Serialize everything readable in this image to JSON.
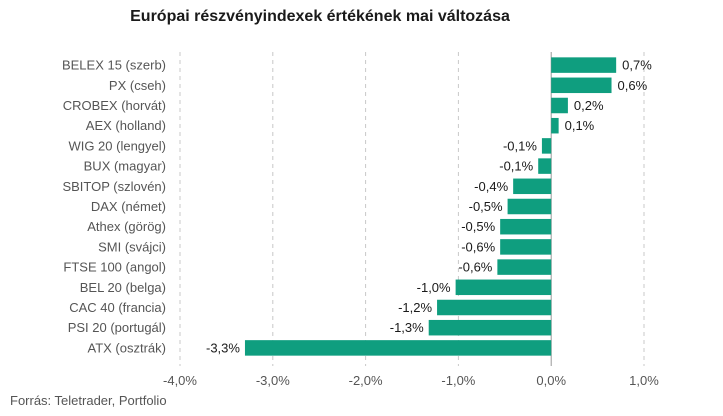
{
  "chart_data": {
    "type": "bar",
    "orientation": "horizontal",
    "title": "Európai részvényindexek értékének mai változása",
    "source": "Forrás: Teletrader, Portfolio",
    "categories": [
      "BELEX 15 (szerb)",
      "PX (cseh)",
      "CROBEX (horvát)",
      "AEX (holland)",
      "WIG 20 (lengyel)",
      "BUX (magyar)",
      "SBITOP (szlovén)",
      "DAX (német)",
      "Athex (görög)",
      "SMI (svájci)",
      "FTSE 100 (angol)",
      "BEL 20 (belga)",
      "CAC 40 (francia)",
      "PSI 20 (portugál)",
      "ATX (osztrák)"
    ],
    "values": [
      0.7,
      0.65,
      0.18,
      0.08,
      -0.1,
      -0.14,
      -0.41,
      -0.47,
      -0.55,
      -0.55,
      -0.58,
      -1.03,
      -1.23,
      -1.32,
      -3.3
    ],
    "value_labels": [
      "0,7%",
      "0,6%",
      "0,2%",
      "0,1%",
      "-0,1%",
      "-0,1%",
      "-0,4%",
      "-0,5%",
      "-0,5%",
      "-0,6%",
      "-0,6%",
      "-1,0%",
      "-1,2%",
      "-1,3%",
      "-3,3%"
    ],
    "x_ticks": [
      -4.0,
      -3.0,
      -2.0,
      -1.0,
      0.0,
      1.0
    ],
    "x_tick_labels": [
      "-4,0%",
      "-3,0%",
      "-2,0%",
      "-1,0%",
      "0,0%",
      "1,0%"
    ],
    "xlim": [
      -4.0,
      1.0
    ],
    "grid": "vertical dashed",
    "legend": "none",
    "colors": {
      "bar": "#0f9e7f",
      "grid": "#c8c8c8",
      "zero_line": "#999999"
    }
  }
}
